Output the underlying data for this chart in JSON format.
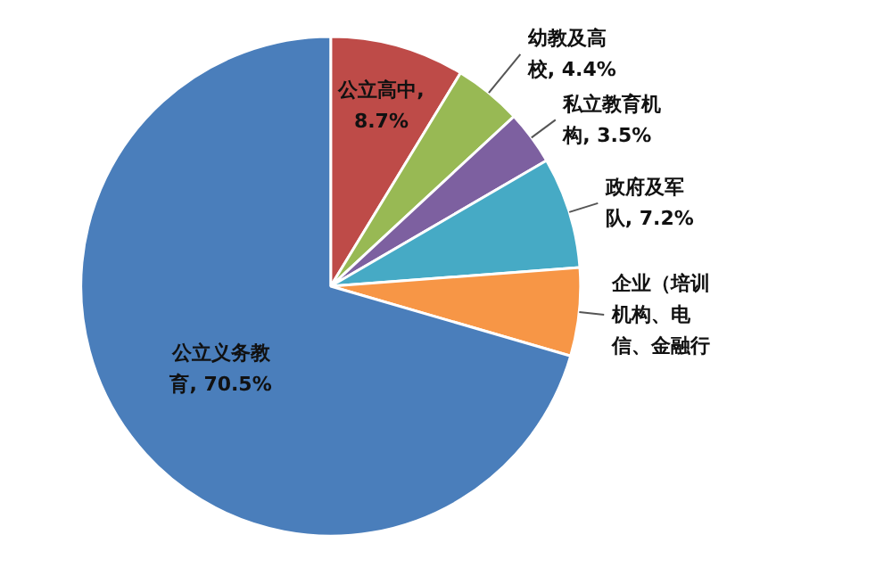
{
  "chart_data": {
    "type": "pie",
    "categories": [
      "公立高中",
      "幼教及高校",
      "私立教育机构",
      "政府及军队",
      "企业（培训机构、电信、金融行",
      "公立义务教育"
    ],
    "values": [
      8.7,
      4.4,
      3.5,
      7.2,
      5.7,
      70.5
    ],
    "value_labels": [
      ", 8.7%",
      ", 4.4%",
      ", 3.5%",
      ", 7.2%",
      null,
      ", 70.5%"
    ],
    "colors": [
      "#be4b48",
      "#98b954",
      "#7d60a0",
      "#46aac5",
      "#f79646",
      "#4a7ebb"
    ]
  }
}
